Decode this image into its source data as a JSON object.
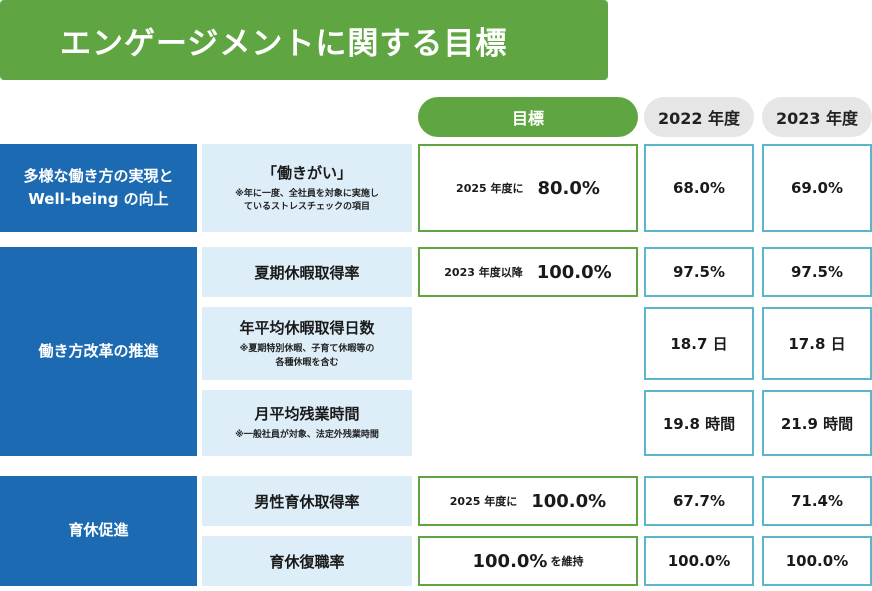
{
  "title": "エンゲージメントに関する目標",
  "headers": {
    "target": "目標",
    "year1": "2022 年度",
    "year2": "2023 年度"
  },
  "categories": {
    "c1_line1": "多様な働き方の実現と",
    "c1_line2": "Well-being の向上",
    "c2": "働き方改革の推進",
    "c3": "育休促進"
  },
  "rows": [
    {
      "item": "「働きがい」",
      "note1": "※年に一度、全社員を対象に実施し",
      "note2": "ているストレスチェックの項目",
      "target_prefix": "2025 年度に",
      "target_value": "80.0%",
      "y2022": "68.0%",
      "y2023": "69.0%"
    },
    {
      "item": "夏期休暇取得率",
      "target_prefix": "2023 年度以降",
      "target_value": "100.0%",
      "y2022": "97.5%",
      "y2023": "97.5%"
    },
    {
      "item": "年平均休暇取得日数",
      "note1": "※夏期特別休暇、子育て休暇等の",
      "note2": "各種休暇を含む",
      "y2022": "18.7 日",
      "y2023": "17.8 日"
    },
    {
      "item": "月平均残業時間",
      "note1": "※一般社員が対象、法定外残業時間",
      "y2022": "19.8 時間",
      "y2023": "21.9 時間"
    },
    {
      "item": "男性育休取得率",
      "target_prefix": "2025 年度に",
      "target_value": "100.0%",
      "y2022": "67.7%",
      "y2023": "71.4%"
    },
    {
      "item": "育休復職率",
      "target_value": "100.0%",
      "target_suffix": "を維持",
      "y2022": "100.0%",
      "y2023": "100.0%"
    }
  ]
}
